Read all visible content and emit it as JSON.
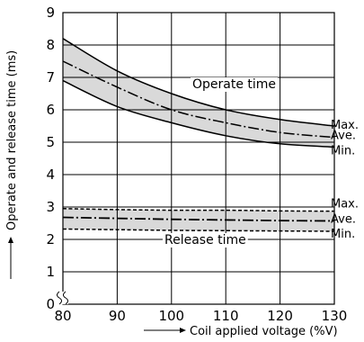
{
  "chart_data": {
    "type": "line",
    "title": "",
    "xlabel": "Coil applied voltage (%V)",
    "ylabel": "Operate and release time (ms)",
    "xlim": [
      80,
      130
    ],
    "ylim": [
      0,
      9
    ],
    "x_ticks": [
      "80",
      "90",
      "100",
      "110",
      "120",
      "130"
    ],
    "y_ticks": [
      "0",
      "1",
      "2",
      "3",
      "4",
      "5",
      "6",
      "7",
      "8",
      "9"
    ],
    "grid": true,
    "x": [
      80,
      90,
      100,
      110,
      120,
      130
    ],
    "groups": [
      {
        "label": "Operate time",
        "shaded": true,
        "series": [
          {
            "name": "Max.",
            "values": [
              8.2,
              7.2,
              6.5,
              6.0,
              5.7,
              5.5
            ]
          },
          {
            "name": "Ave.",
            "values": [
              7.5,
              6.7,
              6.0,
              5.6,
              5.3,
              5.15
            ]
          },
          {
            "name": "Min.",
            "values": [
              6.9,
              6.1,
              5.6,
              5.2,
              4.95,
              4.85
            ]
          }
        ]
      },
      {
        "label": "Release time",
        "shaded": true,
        "series": [
          {
            "name": "Max.",
            "values": [
              2.95,
              2.92,
              2.9,
              2.9,
              2.88,
              2.87
            ]
          },
          {
            "name": "Ave.",
            "values": [
              2.68,
              2.65,
              2.62,
              2.6,
              2.58,
              2.57
            ]
          },
          {
            "name": "Min.",
            "values": [
              2.32,
              2.3,
              2.28,
              2.27,
              2.26,
              2.25
            ]
          }
        ]
      }
    ],
    "axis_break": "x-origin",
    "colors": {
      "line": "#000000",
      "band": "#d9d9d9",
      "grid": "#000000"
    }
  }
}
